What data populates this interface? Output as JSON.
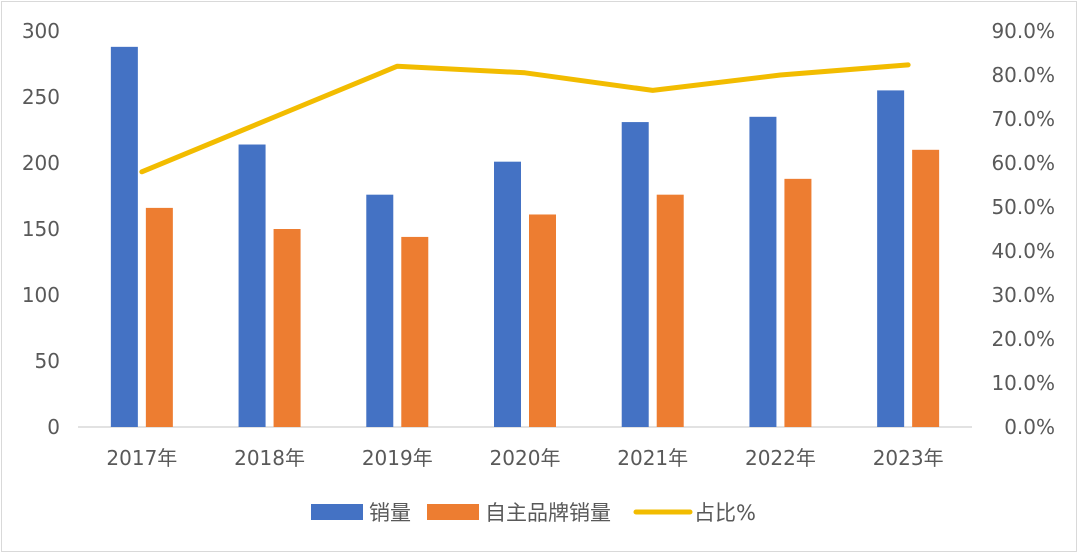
{
  "chart_data": {
    "type": "bar+line",
    "categories": [
      "2017年",
      "2018年",
      "2019年",
      "2020年",
      "2021年",
      "2022年",
      "2023年"
    ],
    "series": [
      {
        "name": "销量",
        "type": "bar",
        "axis": "left",
        "color": "#4472C4",
        "values": [
          288,
          214,
          176,
          201,
          231,
          235,
          255
        ]
      },
      {
        "name": "自主品牌销量",
        "type": "bar",
        "axis": "left",
        "color": "#ED7D31",
        "values": [
          166,
          150,
          144,
          161,
          176,
          188,
          210
        ]
      },
      {
        "name": "占比%",
        "type": "line",
        "axis": "right",
        "color": "#F2BC00",
        "values": [
          58.0,
          70.0,
          82.0,
          80.5,
          76.5,
          80.0,
          82.3
        ]
      }
    ],
    "ylim_left": [
      0,
      300
    ],
    "yticks_left": [
      "0",
      "50",
      "100",
      "150",
      "200",
      "250",
      "300"
    ],
    "ylim_right": [
      0,
      90
    ],
    "yticks_right": [
      "0.0%",
      "10.0%",
      "20.0%",
      "30.0%",
      "40.0%",
      "50.0%",
      "60.0%",
      "70.0%",
      "80.0%",
      "90.0%"
    ],
    "grid": false,
    "legend_position": "bottom-center"
  }
}
